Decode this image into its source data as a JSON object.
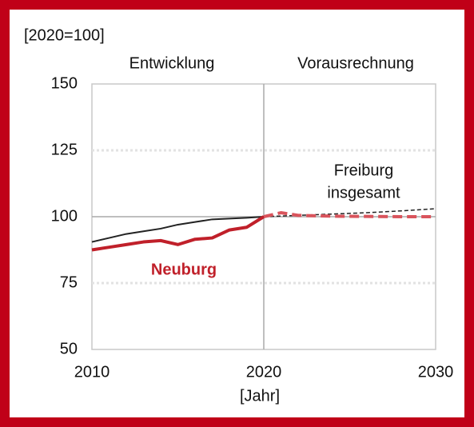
{
  "chart_data": {
    "type": "line",
    "ylabel": "[2020=100]",
    "xlabel": "[Jahr]",
    "xlim": [
      2010,
      2030
    ],
    "xticks": [
      2010,
      2020,
      2030
    ],
    "ylim": [
      50,
      150
    ],
    "yticks": [
      50,
      75,
      100,
      125,
      150
    ],
    "grid": true,
    "annotations": [
      {
        "text": "Entwicklung"
      },
      {
        "text": "Vorausrechnung"
      },
      {
        "text": "Freiburg"
      },
      {
        "text": "insgesamt"
      },
      {
        "text": "Neuburg",
        "color": "#c0202a"
      }
    ],
    "series": [
      {
        "color": "#222222",
        "dashed": false,
        "width": 2,
        "x": [
          2010,
          2011,
          2012,
          2013,
          2014,
          2015,
          2016,
          2017,
          2018,
          2019,
          2020
        ],
        "values": [
          90.5,
          92,
          93.5,
          94.5,
          95.5,
          97,
          98,
          99,
          99.3,
          99.6,
          100
        ]
      },
      {
        "color": "#222222",
        "dashed": true,
        "width": 1.5,
        "x": [
          2020,
          2022,
          2024,
          2026,
          2028,
          2030
        ],
        "values": [
          100,
          100.5,
          101,
          101.5,
          102.2,
          103
        ]
      },
      {
        "color": "#c0202a",
        "dashed": false,
        "width": 4,
        "x": [
          2010,
          2011,
          2012,
          2013,
          2014,
          2015,
          2016,
          2017,
          2018,
          2019,
          2020
        ],
        "values": [
          87.5,
          88.5,
          89.5,
          90.5,
          91,
          89.5,
          91.5,
          92,
          95,
          96,
          100
        ]
      },
      {
        "color": "#d9545c",
        "dashed": true,
        "width": 4,
        "x": [
          2020,
          2021,
          2022,
          2024,
          2026,
          2028,
          2030
        ],
        "values": [
          100,
          101.5,
          100.5,
          100.2,
          100.1,
          100,
          100
        ]
      }
    ]
  }
}
